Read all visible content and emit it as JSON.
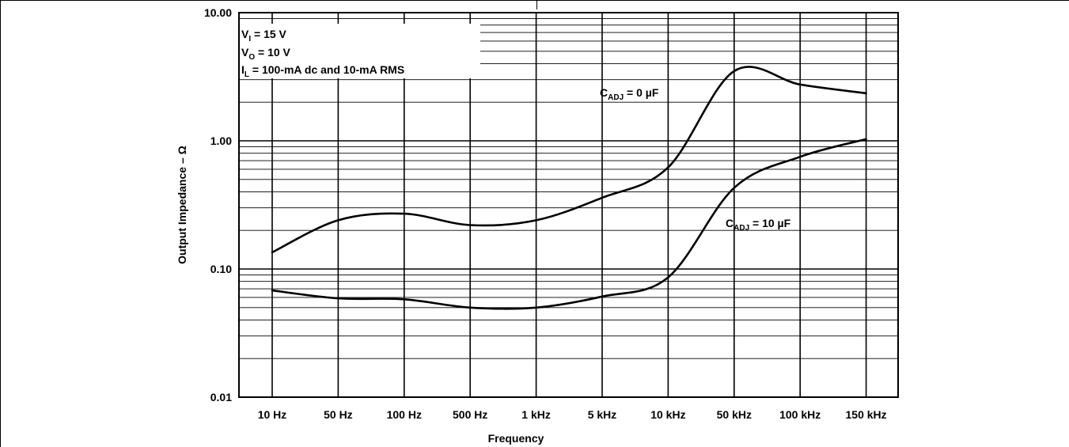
{
  "chart_data": {
    "type": "line",
    "title": "",
    "xlabel": "Frequency",
    "ylabel": "Output Impedance – Ω",
    "y_scale": "log",
    "ylim": [
      0.01,
      10
    ],
    "grid": true,
    "x_ticks": [
      "10 Hz",
      "50 Hz",
      "100 Hz",
      "500 Hz",
      "1 kHz",
      "5 kHz",
      "10 kHz",
      "50 kHz",
      "100 kHz",
      "150 kHz"
    ],
    "y_ticks": [
      {
        "value": 0.01,
        "label": "0.01"
      },
      {
        "value": 0.1,
        "label": "0.10"
      },
      {
        "value": 1,
        "label": "1.00"
      },
      {
        "value": 10,
        "label": "10.00"
      }
    ],
    "conditions": {
      "vi": {
        "main": "V",
        "sub": "I",
        "rest": " = 15 V"
      },
      "vo": {
        "main": "V",
        "sub": "O",
        "rest": " = 10 V"
      },
      "il": {
        "main": "I",
        "sub": "L",
        "rest": " = 100-mA dc and 10-mA RMS"
      }
    },
    "series": [
      {
        "name": "CADJ = 0 µF",
        "label": {
          "main": "C",
          "sub": "ADJ",
          "rest": " = 0 µF"
        },
        "x": [
          "10 Hz",
          "50 Hz",
          "100 Hz",
          "500 Hz",
          "1 kHz",
          "5 kHz",
          "10 kHz",
          "50 kHz",
          "100 kHz",
          "150 kHz"
        ],
        "values": [
          0.135,
          0.24,
          0.27,
          0.22,
          0.24,
          0.36,
          0.62,
          3.5,
          2.75,
          2.35
        ]
      },
      {
        "name": "CADJ = 10 µF",
        "label": {
          "main": "C",
          "sub": "ADJ",
          "rest": " = 10 µF"
        },
        "x": [
          "10 Hz",
          "50 Hz",
          "100 Hz",
          "500 Hz",
          "1 kHz",
          "5 kHz",
          "10 kHz",
          "50 kHz",
          "100 kHz",
          "150 kHz"
        ],
        "values": [
          0.068,
          0.059,
          0.058,
          0.05,
          0.05,
          0.061,
          0.086,
          0.43,
          0.75,
          1.03
        ]
      }
    ]
  }
}
